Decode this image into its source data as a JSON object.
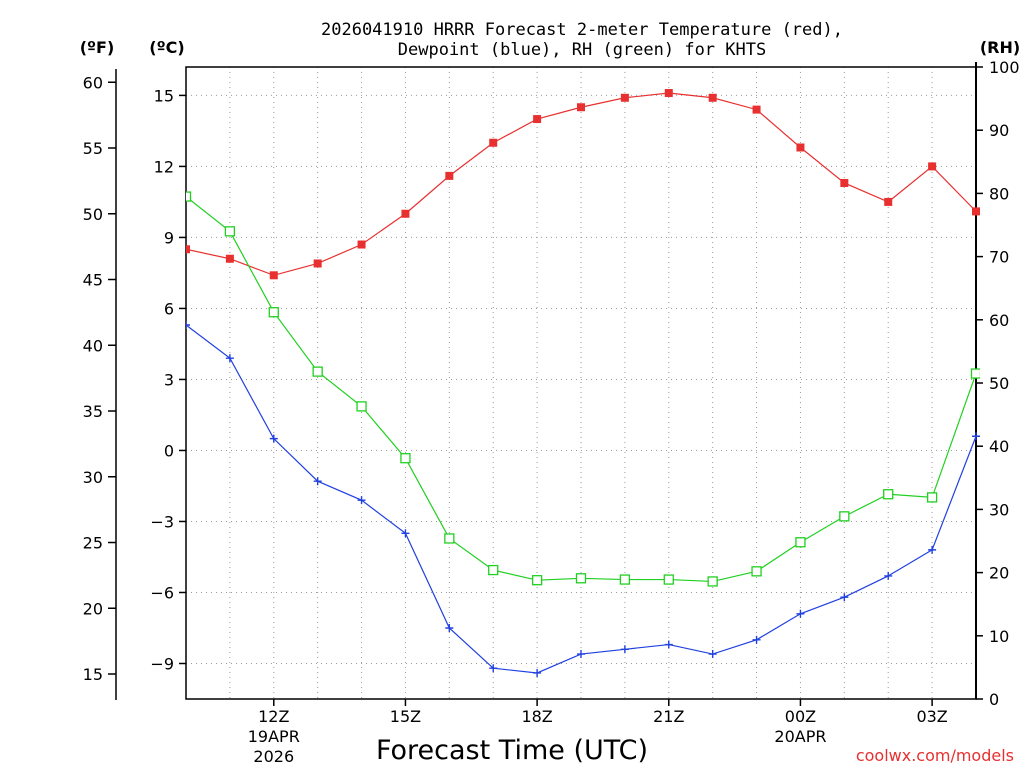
{
  "chart_data": {
    "type": "line",
    "title_line1": "2026041910 HRRR Forecast 2-meter Temperature (red),",
    "title_line2": "Dewpoint (blue), RH (green) for KHTS",
    "xlabel": "Forecast Time (UTC)",
    "units": {
      "fahrenheit": "(ºF)",
      "celsius": "(ºC)",
      "rh": "(RH)"
    },
    "credit": "coolwx.com/models",
    "hours": [
      10,
      11,
      12,
      13,
      14,
      15,
      16,
      17,
      18,
      19,
      20,
      21,
      22,
      23,
      24,
      25,
      26,
      27,
      28
    ],
    "xlim": [
      10,
      28
    ],
    "x_ticks": [
      {
        "hour": 12,
        "line1": "12Z",
        "line2": "19APR",
        "line3": "2026"
      },
      {
        "hour": 15,
        "line1": "15Z",
        "line2": "",
        "line3": ""
      },
      {
        "hour": 18,
        "line1": "18Z",
        "line2": "",
        "line3": ""
      },
      {
        "hour": 21,
        "line1": "21Z",
        "line2": "",
        "line3": ""
      },
      {
        "hour": 24,
        "line1": "00Z",
        "line2": "20APR",
        "line3": ""
      },
      {
        "hour": 27,
        "line1": "03Z",
        "line2": "",
        "line3": ""
      }
    ],
    "celsius_axis": {
      "ylim": [
        -10.5,
        16.2
      ],
      "ticks": [
        15,
        12,
        9,
        6,
        3,
        0,
        -3,
        -6,
        -9
      ]
    },
    "fahrenheit_axis": {
      "ylim": [
        13.1,
        61.16
      ],
      "ticks": [
        60,
        55,
        50,
        45,
        40,
        35,
        30,
        25,
        20,
        15
      ]
    },
    "rh_axis": {
      "ylim": [
        0,
        100
      ],
      "ticks": [
        100,
        90,
        80,
        70,
        60,
        50,
        40,
        30,
        20,
        10,
        0
      ]
    },
    "series": [
      {
        "name": "2-meter Temperature",
        "unit": "C",
        "color": "#e83030",
        "marker": "filled-square",
        "values": [
          8.5,
          8.1,
          7.4,
          7.9,
          8.7,
          10.0,
          11.6,
          13.0,
          14.0,
          14.5,
          14.9,
          15.1,
          14.9,
          14.4,
          12.8,
          11.3,
          10.5,
          12.0,
          10.1
        ]
      },
      {
        "name": "Dewpoint",
        "unit": "C",
        "color": "#2040e0",
        "marker": "plus",
        "values": [
          5.3,
          3.9,
          0.5,
          -1.3,
          -2.1,
          -3.5,
          -7.5,
          -9.2,
          -9.4,
          -8.6,
          -8.4,
          -8.2,
          -8.6,
          -8.0,
          -6.9,
          -6.2,
          -5.3,
          -4.2,
          0.6
        ]
      },
      {
        "name": "RH",
        "unit": "%",
        "color": "#20d020",
        "marker": "open-square",
        "values": [
          79.5,
          74,
          61.2,
          51.8,
          46.3,
          38.1,
          25.4,
          20.4,
          18.8,
          19.1,
          18.9,
          18.9,
          18.6,
          20.2,
          24.8,
          28.9,
          32.4,
          31.9,
          51.5
        ]
      }
    ]
  }
}
